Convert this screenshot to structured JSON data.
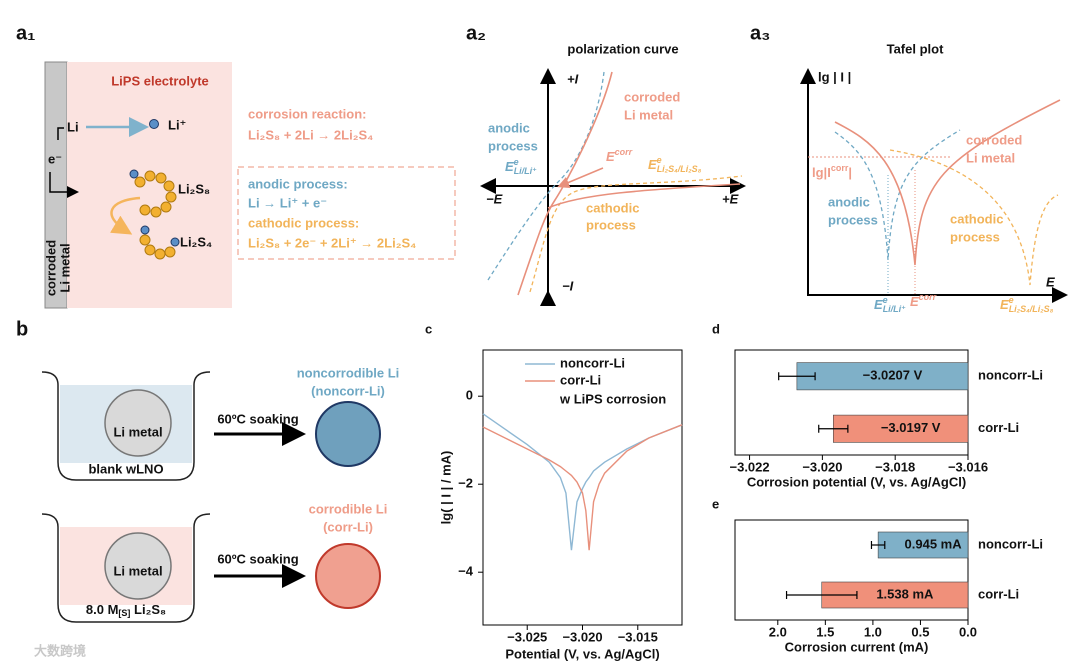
{
  "a1": {
    "label": "a₁",
    "electrolyte": "LiPS electrolyte",
    "li": "Li",
    "e": "e⁻",
    "li_ion": "Li⁺",
    "li2s8": "Li₂S₈",
    "li2s4": "Li₂S₄",
    "metal": [
      "corroded",
      "Li metal"
    ],
    "corrosion_title": "corrosion reaction:",
    "corrosion_eq": "Li₂S₈ + 2Li → 2Li₂S₄",
    "anodic_title": "anodic process:",
    "anodic_eq": "Li → Li⁺ + e⁻",
    "cathodic_title": "cathodic process:",
    "cathodic_eq": "Li₂S₈ + 2e⁻ + 2Li⁺ → 2Li₂S₄"
  },
  "a2": {
    "label": "a₂",
    "title": "polarization curve",
    "plus_i": "+I",
    "minus_i": "−I",
    "minus_e": "−E",
    "plus_e": "+E",
    "corroded": [
      "corroded",
      "Li metal"
    ],
    "anodic": [
      "anodic",
      "process"
    ],
    "cathodic": [
      "cathodic",
      "process"
    ],
    "e_li": {
      "main": "E",
      "sup": "e",
      "sub": "Li/Li⁺"
    },
    "e_corr": {
      "main": "E",
      "sup": "corr"
    },
    "e_lis": {
      "main": "E",
      "sup": "e",
      "sub": "Li₂S₄/Li₂S₈"
    }
  },
  "a3": {
    "label": "a₃",
    "title": "Tafel plot",
    "ylabel": "lg | I |",
    "xlabel": "E",
    "icorr": {
      "main": "lg|I",
      "sup": "corr",
      "end": "|"
    },
    "corroded": [
      "corroded",
      "Li metal"
    ],
    "anodic": [
      "anodic",
      "process"
    ],
    "cathodic": [
      "cathodic",
      "process"
    ],
    "e_li": {
      "main": "E",
      "sup": "e",
      "sub": "Li/Li⁺"
    },
    "e_corr": {
      "main": "E",
      "sup": "corr"
    },
    "e_lis": {
      "main": "E",
      "sup": "e",
      "sub": "Li₂S₄/Li₂S₈"
    }
  },
  "b": {
    "label": "b",
    "li_metal": "Li metal",
    "soaking": "60ºC soaking",
    "blank": "blank wLNO",
    "solution": {
      "main": "8.0 M",
      "sub": "[S]",
      "end": " Li₂S₈"
    },
    "noncorr": [
      "noncorrodible Li",
      "(noncorr-Li)"
    ],
    "corr": [
      "corrodible Li",
      "(corr-Li)"
    ]
  },
  "watermark": "大数跨境",
  "chart_data": [
    {
      "type": "line",
      "label": "c",
      "xlabel": "Potential (V, vs. Ag/AgCl)",
      "ylabel": "lg( | I | / mA)",
      "annotation": "w LiPS corrosion",
      "x": [
        -3.029,
        -3.027,
        -3.025,
        -3.023,
        -3.022,
        -3.0215,
        -3.021,
        -3.0205,
        -3.02,
        -3.0197,
        -3.0194,
        -3.019,
        -3.0185,
        -3.018,
        -3.016,
        -3.014,
        -3.011
      ],
      "series": [
        {
          "name": "noncorr-Li",
          "color": "#8fb8d4",
          "values": [
            -0.4,
            -0.75,
            -1.1,
            -1.5,
            -1.85,
            -2.2,
            -3.5,
            -2.4,
            -2.1,
            -1.95,
            -1.85,
            -1.7,
            -1.6,
            -1.5,
            -1.2,
            -0.95,
            -0.65
          ]
        },
        {
          "name": "corr-Li",
          "color": "#e8907c",
          "values": [
            -0.7,
            -0.95,
            -1.2,
            -1.45,
            -1.6,
            -1.7,
            -1.8,
            -1.95,
            -2.2,
            -2.6,
            -3.5,
            -2.4,
            -2.0,
            -1.75,
            -1.25,
            -0.95,
            -0.65
          ]
        }
      ],
      "xlim": [
        -3.029,
        -3.011
      ],
      "ylim": [
        -5.2,
        1.05
      ],
      "xticks": [
        {
          "value": -3.025,
          "label": "−3.025"
        },
        {
          "value": -3.02,
          "label": "−3.020"
        },
        {
          "value": -3.015,
          "label": "−3.015"
        }
      ],
      "yticks": [
        0,
        {
          "value": -2,
          "label": "−2"
        },
        {
          "value": -4,
          "label": "−4"
        }
      ]
    },
    {
      "type": "bar",
      "label": "d",
      "horizontal": true,
      "xlabel": "Corrosion potential (V, vs. Ag/AgCl)",
      "categories": [
        "noncorr-Li",
        "corr-Li"
      ],
      "values": [
        -3.0207,
        -3.0197
      ],
      "value_labels": [
        "−3.0207 V",
        "−3.0197 V"
      ],
      "errors": [
        0.0005,
        0.0004
      ],
      "colors": [
        "#7fb0c8",
        "#f0907a"
      ],
      "xlim": [
        -3.0224,
        -3.016
      ],
      "xticks": [
        {
          "value": -3.022,
          "label": "−3.022"
        },
        {
          "value": -3.02,
          "label": "−3.020"
        },
        {
          "value": -3.018,
          "label": "−3.018"
        },
        {
          "value": -3.016,
          "label": "−3.016"
        }
      ]
    },
    {
      "type": "bar",
      "label": "e",
      "horizontal": true,
      "xlabel": "Corrosion current (mA)",
      "categories": [
        "noncorr-Li",
        "corr-Li"
      ],
      "values": [
        0.945,
        1.538
      ],
      "value_labels": [
        "0.945 mA",
        "1.538 mA"
      ],
      "errors": [
        0.07,
        0.37
      ],
      "colors": [
        "#7fb0c8",
        "#f0907a"
      ],
      "xlim": [
        2.45,
        0
      ],
      "xticks": [
        {
          "value": 2.0,
          "label": "2.0"
        },
        {
          "value": 1.5,
          "label": "1.5"
        },
        {
          "value": 1.0,
          "label": "1.0"
        },
        {
          "value": 0.5,
          "label": "0.5"
        },
        {
          "value": 0.0,
          "label": "0.0"
        }
      ]
    }
  ]
}
